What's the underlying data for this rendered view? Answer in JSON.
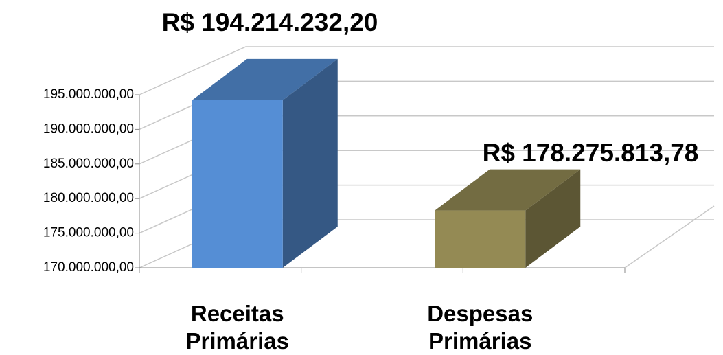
{
  "chart_data": {
    "type": "bar3d",
    "categories": [
      "Receitas Primárias",
      "Despesas Primárias"
    ],
    "values": [
      194214232.2,
      178275813.78
    ],
    "value_labels": [
      "R$ 194.214.232,20",
      "R$ 178.275.813,78"
    ],
    "colors": [
      "#558ed5",
      "#948a54"
    ],
    "ylim": [
      170000000,
      195000000
    ],
    "yticks": [
      {
        "value": 170000000,
        "label": "170.000.000,00"
      },
      {
        "value": 175000000,
        "label": "175.000.000,00"
      },
      {
        "value": 180000000,
        "label": "180.000.000,00"
      },
      {
        "value": 185000000,
        "label": "185.000.000,00"
      },
      {
        "value": 190000000,
        "label": "190.000.000,00"
      },
      {
        "value": 195000000,
        "label": "195.000.000,00"
      }
    ],
    "grid": true
  }
}
